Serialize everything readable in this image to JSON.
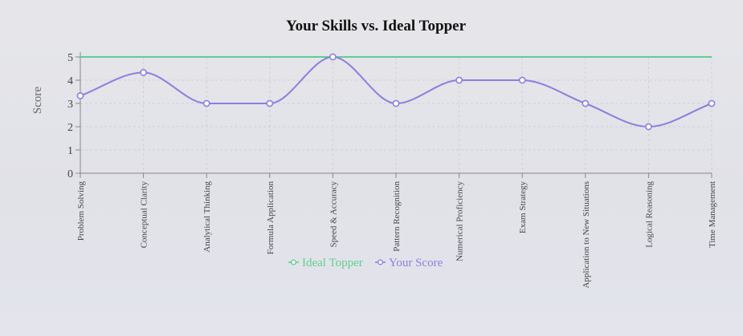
{
  "chart_data": {
    "type": "line",
    "title": "Your Skills vs. Ideal Topper",
    "xlabel": "",
    "ylabel": "Score",
    "ylim": [
      0,
      5
    ],
    "yticks": [
      0,
      1,
      2,
      3,
      4,
      5
    ],
    "grid": true,
    "legend_position": "bottom",
    "categories": [
      "Problem Solving",
      "Conceptual Clarity",
      "Analytical Thinking",
      "Formula Application",
      "Speed & Accuracy",
      "Pattern Recognition",
      "Numerical Proficiency",
      "Exam Strategy",
      "Application to New Situations",
      "Logical Reasoning",
      "Time Management"
    ],
    "series": [
      {
        "name": "Ideal Topper",
        "color": "#5fcf8f",
        "values": [
          5,
          5,
          5,
          5,
          5,
          5,
          5,
          5,
          5,
          5,
          5
        ],
        "show_points": false
      },
      {
        "name": "Your Score",
        "color": "#8b7fe0",
        "values": [
          3.33,
          4.33,
          3,
          3,
          5,
          3,
          4,
          4,
          3,
          2,
          3
        ],
        "show_points": true
      }
    ]
  }
}
